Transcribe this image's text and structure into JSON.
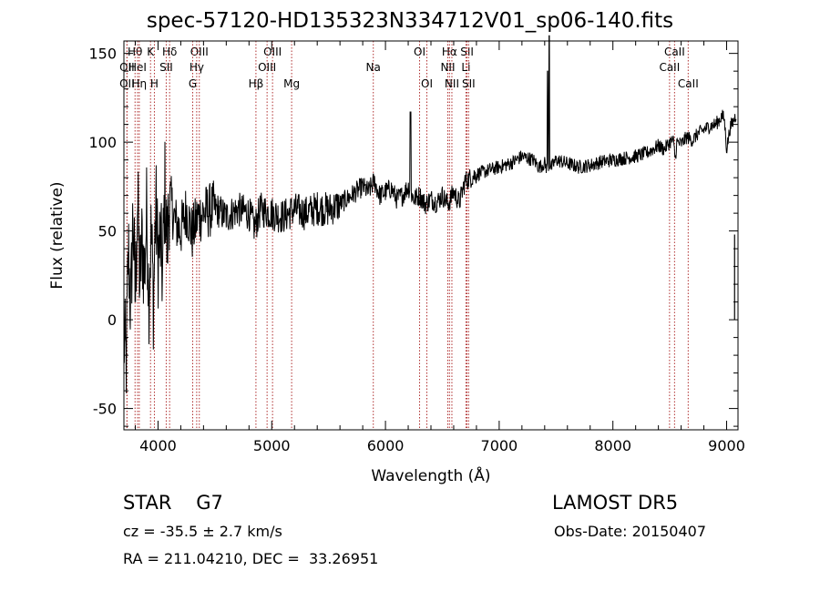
{
  "title": "spec-57120-HD135323N334712V01_sp06-140.fits",
  "info": {
    "object_type": "STAR",
    "subclass": "G7",
    "survey": "LAMOST DR5",
    "cz": "cz = -35.5 ± 2.7 km/s",
    "obs_date": "Obs-Date: 20150407",
    "ra_dec": "RA = 211.04210, DEC =  33.26951"
  },
  "colors": {
    "spectrum": "#000000",
    "lines": "#b03030",
    "axes": "#000000"
  },
  "chart_data": {
    "type": "line",
    "title": "spec-57120-HD135323N334712V01_sp06-140.fits",
    "xlabel": "Wavelength (Å)",
    "ylabel": "Flux (relative)",
    "xlim": [
      3700,
      9100
    ],
    "ylim": [
      -62,
      157
    ],
    "xticks": [
      4000,
      5000,
      6000,
      7000,
      8000,
      9000
    ],
    "yticks": [
      -50,
      0,
      50,
      100,
      150
    ],
    "grid": false,
    "legend": "none",
    "series": [
      {
        "values_x": [
          3700,
          3720,
          3740,
          3760,
          3780,
          3800,
          3820,
          3840,
          3860,
          3880,
          3900,
          3920,
          3940,
          3960,
          3980,
          4000,
          4020,
          4040,
          4060,
          4080,
          4100,
          4150,
          4200,
          4250,
          4300,
          4350,
          4400,
          4500,
          4600,
          4700,
          4800,
          4850,
          4900,
          5000,
          5100,
          5200,
          5300,
          5400,
          5500,
          5600,
          5700,
          5800,
          5850,
          5900,
          5950,
          6000,
          6050,
          6100,
          6150,
          6200,
          6250,
          6300,
          6350,
          6400,
          6450,
          6500,
          6550,
          6600,
          6650,
          6700,
          6750,
          6800,
          6900,
          7000,
          7100,
          7200,
          7300,
          7350,
          7400,
          7420,
          7440,
          7460,
          7500,
          7600,
          7700,
          7800,
          7900,
          8000,
          8100,
          8200,
          8300,
          8400,
          8450,
          8500,
          8530,
          8550,
          8560,
          8600,
          8650,
          8700,
          8750,
          8800,
          8850,
          8900,
          8930,
          8960,
          8980,
          9000,
          9030,
          9060,
          9080
        ],
        "values_y": [
          -10,
          -25,
          40,
          5,
          60,
          10,
          70,
          20,
          45,
          25,
          60,
          15,
          50,
          10,
          65,
          35,
          45,
          25,
          75,
          40,
          70,
          55,
          50,
          62,
          48,
          58,
          60,
          63,
          58,
          62,
          60,
          52,
          62,
          60,
          58,
          62,
          60,
          63,
          62,
          65,
          70,
          75,
          72,
          78,
          70,
          72,
          74,
          68,
          70,
          75,
          68,
          70,
          65,
          68,
          66,
          70,
          65,
          72,
          66,
          78,
          80,
          82,
          84,
          86,
          88,
          92,
          90,
          86,
          88,
          85,
          88,
          86,
          90,
          88,
          86,
          87,
          89,
          90,
          91,
          92,
          94,
          98,
          96,
          100,
          101,
          90,
          100,
          99,
          103,
          101,
          105,
          107,
          109,
          110,
          112,
          115,
          113,
          96,
          108,
          112,
          115
        ]
      }
    ],
    "spikes": [
      {
        "x": 6220,
        "y": 117
      },
      {
        "x": 7425,
        "y": 140
      },
      {
        "x": 7440,
        "y": 160
      }
    ],
    "line_markers": [
      {
        "label": "Hθ",
        "x": 3798,
        "row": 1
      },
      {
        "label": "OII",
        "x": 3727,
        "row": 2
      },
      {
        "label": "OII",
        "x": 3727,
        "row": 3
      },
      {
        "label": "HeI",
        "x": 3820,
        "row": 2
      },
      {
        "label": "Hη",
        "x": 3835,
        "row": 3
      },
      {
        "label": "K",
        "x": 3934,
        "row": 1
      },
      {
        "label": "H",
        "x": 3968,
        "row": 3
      },
      {
        "label": "Hδ",
        "x": 4102,
        "row": 1
      },
      {
        "label": "SII",
        "x": 4072,
        "row": 2
      },
      {
        "label": "OIII",
        "x": 4363,
        "row": 1
      },
      {
        "label": "Hγ",
        "x": 4340,
        "row": 2
      },
      {
        "label": "G",
        "x": 4305,
        "row": 3
      },
      {
        "label": "Hβ",
        "x": 4861,
        "row": 3
      },
      {
        "label": "OIII",
        "x": 5007,
        "row": 1
      },
      {
        "label": "OIII",
        "x": 4959,
        "row": 2
      },
      {
        "label": "Mg",
        "x": 5175,
        "row": 3
      },
      {
        "label": "Na",
        "x": 5893,
        "row": 2
      },
      {
        "label": "OI",
        "x": 6300,
        "row": 1
      },
      {
        "label": "OI",
        "x": 6364,
        "row": 3
      },
      {
        "label": "Hα",
        "x": 6563,
        "row": 1
      },
      {
        "label": "NII",
        "x": 6548,
        "row": 2
      },
      {
        "label": "NII",
        "x": 6584,
        "row": 3
      },
      {
        "label": "SII",
        "x": 6717,
        "row": 1
      },
      {
        "label": "Li",
        "x": 6708,
        "row": 2
      },
      {
        "label": "SII",
        "x": 6731,
        "row": 3
      },
      {
        "label": "CaII",
        "x": 8542,
        "row": 1
      },
      {
        "label": "CaII",
        "x": 8498,
        "row": 2
      },
      {
        "label": "CaII",
        "x": 8662,
        "row": 3
      }
    ]
  }
}
